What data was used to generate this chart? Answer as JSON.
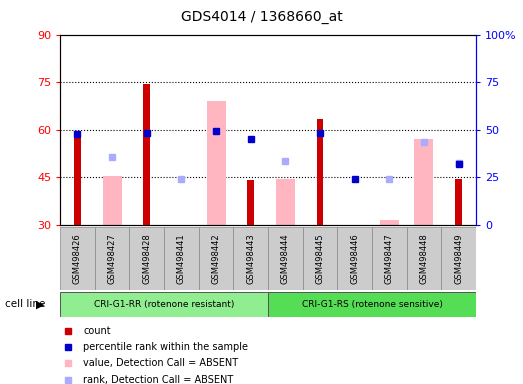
{
  "title": "GDS4014 / 1368660_at",
  "samples": [
    "GSM498426",
    "GSM498427",
    "GSM498428",
    "GSM498441",
    "GSM498442",
    "GSM498443",
    "GSM498444",
    "GSM498445",
    "GSM498446",
    "GSM498447",
    "GSM498448",
    "GSM498449"
  ],
  "count_values": [
    59.5,
    null,
    74.5,
    30.0,
    null,
    44.0,
    null,
    63.5,
    30.0,
    30.0,
    null,
    44.5
  ],
  "rank_values": [
    58.5,
    null,
    59.0,
    null,
    59.5,
    57.0,
    null,
    59.0,
    44.5,
    null,
    null,
    49.0
  ],
  "absent_value": [
    null,
    45.5,
    null,
    null,
    69.0,
    null,
    44.5,
    null,
    null,
    31.5,
    57.0,
    null
  ],
  "absent_rank": [
    null,
    51.5,
    null,
    44.5,
    null,
    null,
    50.0,
    null,
    null,
    44.5,
    56.0,
    49.5
  ],
  "ylim_left": [
    30,
    90
  ],
  "yticks_left": [
    30,
    45,
    60,
    75,
    90
  ],
  "ylim_right": [
    0,
    100
  ],
  "yticks_right": [
    0,
    25,
    50,
    75,
    100
  ],
  "group1_label": "CRI-G1-RR (rotenone resistant)",
  "group2_label": "CRI-G1-RS (rotenone sensitive)",
  "group1_indices": [
    0,
    1,
    2,
    3,
    4,
    5
  ],
  "group2_indices": [
    6,
    7,
    8,
    9,
    10,
    11
  ],
  "group1_color": "#90EE90",
  "group2_color": "#55DD55",
  "legend_items": [
    "count",
    "percentile rank within the sample",
    "value, Detection Call = ABSENT",
    "rank, Detection Call = ABSENT"
  ],
  "legend_colors": [
    "#CC0000",
    "#0000CC",
    "#FFB6C1",
    "#AAAAFF"
  ],
  "count_color": "#CC0000",
  "rank_color": "#0000CC",
  "absent_value_color": "#FFB6C1",
  "absent_rank_color": "#AAAAFF",
  "grid_yticks": [
    45,
    60,
    75
  ],
  "xtick_bg_color": "#CCCCCC"
}
